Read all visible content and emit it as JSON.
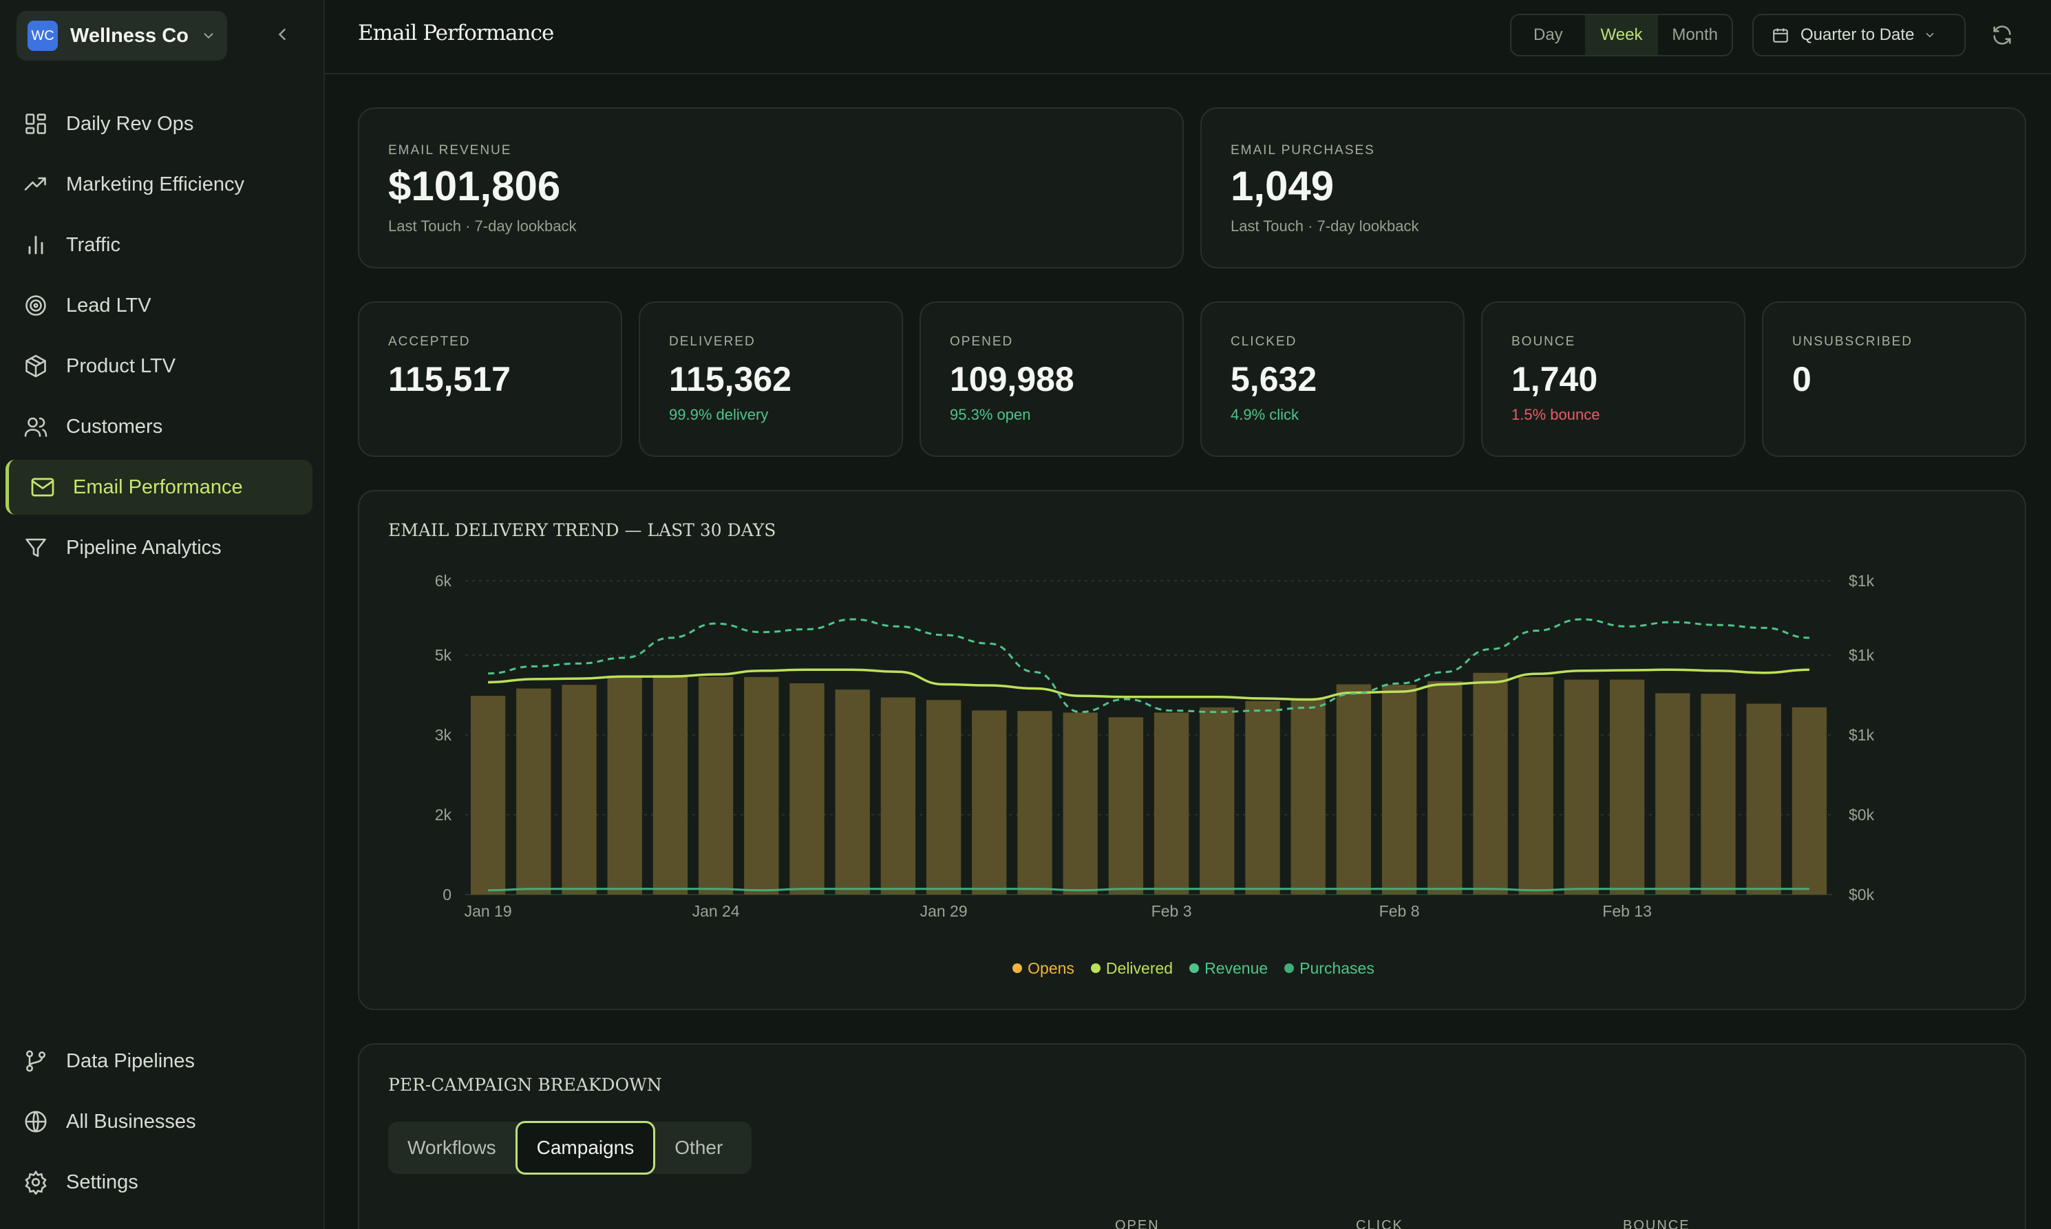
{
  "workspace": {
    "avatar_initials": "WC",
    "name": "Wellness Co"
  },
  "nav": {
    "items": [
      {
        "label": "Daily Rev Ops",
        "icon": "grid-icon"
      },
      {
        "label": "Marketing Efficiency",
        "icon": "trending-up-icon"
      },
      {
        "label": "Traffic",
        "icon": "bar-chart-icon"
      },
      {
        "label": "Lead LTV",
        "icon": "target-icon"
      },
      {
        "label": "Product LTV",
        "icon": "box-icon"
      },
      {
        "label": "Customers",
        "icon": "users-icon"
      },
      {
        "label": "Email Performance",
        "icon": "mail-icon",
        "active": true
      },
      {
        "label": "Pipeline Analytics",
        "icon": "filter-icon"
      }
    ],
    "bottom": [
      {
        "label": "Data Pipelines",
        "icon": "git-branch-icon"
      },
      {
        "label": "All Businesses",
        "icon": "globe-icon"
      },
      {
        "label": "Settings",
        "icon": "gear-icon"
      }
    ]
  },
  "header": {
    "title": "Email Performance",
    "granularity": [
      "Day",
      "Week",
      "Month"
    ],
    "granularity_selected": "Week",
    "date_range": "Quarter to Date"
  },
  "kpis_big": [
    {
      "label": "EMAIL REVENUE",
      "value": "$101,806",
      "sub": "Last Touch · 7-day lookback"
    },
    {
      "label": "EMAIL PURCHASES",
      "value": "1,049",
      "sub": "Last Touch · 7-day lookback"
    }
  ],
  "kpis_small": [
    {
      "label": "ACCEPTED",
      "value": "115,517",
      "sub": "",
      "tone": "neutral"
    },
    {
      "label": "DELIVERED",
      "value": "115,362",
      "sub": "99.9% delivery",
      "tone": "good"
    },
    {
      "label": "OPENED",
      "value": "109,988",
      "sub": "95.3% open",
      "tone": "good"
    },
    {
      "label": "CLICKED",
      "value": "5,632",
      "sub": "4.9% click",
      "tone": "good"
    },
    {
      "label": "BOUNCE",
      "value": "1,740",
      "sub": "1.5% bounce",
      "tone": "bad"
    },
    {
      "label": "UNSUBSCRIBED",
      "value": "0",
      "sub": "",
      "tone": "neutral"
    }
  ],
  "chart_data": {
    "type": "bar",
    "title": "EMAIL DELIVERY TREND — LAST 30 DAYS",
    "x_tick_labels": [
      "Jan 19",
      "Jan 24",
      "Jan 29",
      "Feb 3",
      "Feb 8",
      "Feb 13"
    ],
    "y_left_ticks": [
      "0",
      "2k",
      "3k",
      "5k",
      "6k"
    ],
    "y_left_range": [
      0,
      6000
    ],
    "y_right_ticks": [
      "$0k",
      "$0k",
      "$1k",
      "$1k",
      "$1k"
    ],
    "grid": true,
    "legend_position": "bottom-center",
    "colors": {
      "Opens": "#f2b53a",
      "Delivered": "#bde05a",
      "Revenue": "#4fc48a",
      "Purchases": "#3fae7a",
      "bars": "#5e542b"
    },
    "series": [
      {
        "name": "Opens",
        "type": "bar",
        "values": [
          3800,
          3940,
          4010,
          4180,
          4200,
          4160,
          4160,
          4040,
          3920,
          3770,
          3720,
          3520,
          3510,
          3480,
          3390,
          3480,
          3580,
          3700,
          3730,
          4020,
          4010,
          4080,
          4240,
          4160,
          4110,
          4110,
          3850,
          3840,
          3650,
          3580
        ]
      },
      {
        "name": "Delivered",
        "type": "line",
        "values": [
          4060,
          4120,
          4130,
          4170,
          4170,
          4210,
          4280,
          4300,
          4300,
          4260,
          4020,
          4000,
          3940,
          3800,
          3780,
          3780,
          3780,
          3750,
          3730,
          3860,
          3880,
          4020,
          4060,
          4220,
          4280,
          4290,
          4300,
          4280,
          4240,
          4300
        ]
      },
      {
        "name": "Revenue",
        "type": "line",
        "axis": "right",
        "values": [
          1.55,
          1.6,
          1.62,
          1.66,
          1.8,
          1.9,
          1.84,
          1.86,
          1.93,
          1.88,
          1.82,
          1.76,
          1.56,
          1.28,
          1.37,
          1.29,
          1.28,
          1.29,
          1.31,
          1.41,
          1.48,
          1.56,
          1.72,
          1.85,
          1.93,
          1.88,
          1.91,
          1.89,
          1.87,
          1.8
        ]
      },
      {
        "name": "Purchases",
        "type": "line",
        "axis": "right",
        "values": [
          0.03,
          0.04,
          0.04,
          0.04,
          0.04,
          0.04,
          0.03,
          0.04,
          0.04,
          0.04,
          0.04,
          0.04,
          0.04,
          0.03,
          0.04,
          0.04,
          0.04,
          0.04,
          0.04,
          0.04,
          0.04,
          0.04,
          0.04,
          0.03,
          0.04,
          0.04,
          0.04,
          0.04,
          0.04,
          0.04
        ]
      }
    ]
  },
  "breakdown": {
    "title": "PER-CAMPAIGN BREAKDOWN",
    "tabs": [
      "Workflows",
      "Campaigns",
      "Other"
    ],
    "selected_tab": "Campaigns",
    "columns": [
      "OPEN",
      "CLICK",
      "BOUNCE"
    ]
  }
}
